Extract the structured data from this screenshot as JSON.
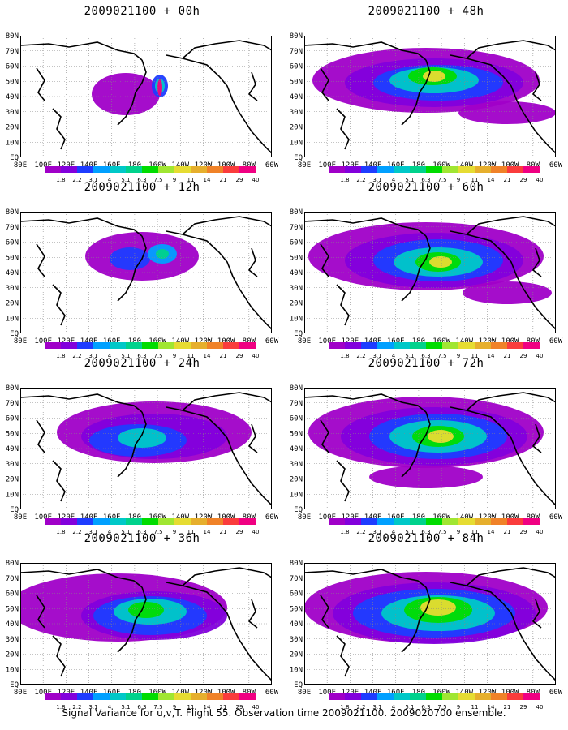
{
  "panels": [
    {
      "title": "2009021100 + 00h",
      "lead": 0
    },
    {
      "title": "2009021100 + 48h",
      "lead": 48
    },
    {
      "title": "2009021100 + 12h",
      "lead": 12
    },
    {
      "title": "2009021100 + 60h",
      "lead": 60
    },
    {
      "title": "2009021100 + 24h",
      "lead": 24
    },
    {
      "title": "2009021100 + 72h",
      "lead": 72
    },
    {
      "title": "2009021100 + 36h",
      "lead": 36
    },
    {
      "title": "2009021100 + 84h",
      "lead": 84
    }
  ],
  "axes": {
    "x_ticks": [
      "80E",
      "100E",
      "120E",
      "140E",
      "160E",
      "180",
      "160W",
      "140W",
      "120W",
      "100W",
      "80W",
      "60W"
    ],
    "y_ticks": [
      "80N",
      "70N",
      "60N",
      "50N",
      "40N",
      "30N",
      "20N",
      "10N",
      "EQ"
    ]
  },
  "colorbar": {
    "levels": [
      "1.8",
      "2.2",
      "3.1",
      "4",
      "5.1",
      "6.3",
      "7.5",
      "9",
      "11",
      "14",
      "21",
      "29",
      "40"
    ],
    "colors": [
      "#a000c8",
      "#8200dc",
      "#1e3cff",
      "#00a0ff",
      "#00c8c8",
      "#00d28c",
      "#00dc00",
      "#a0e632",
      "#e6dc32",
      "#e6af2d",
      "#f08228",
      "#fa3c3c",
      "#f00082"
    ]
  },
  "chart_data": [
    {
      "type": "heatmap",
      "title": "2009021100 + 00h",
      "x_range": [
        "80E",
        "60W"
      ],
      "y_range": [
        "EQ",
        "80N"
      ],
      "variable": "Signal Variance",
      "units_levels": [
        1.8,
        2.2,
        3.1,
        4,
        5.1,
        6.3,
        7.5,
        9,
        11,
        14,
        21,
        29,
        40
      ],
      "peak_region": "160W 50N",
      "peak_level": 40
    },
    {
      "type": "heatmap",
      "title": "2009021100 + 48h",
      "x_range": [
        "80E",
        "60W"
      ],
      "y_range": [
        "EQ",
        "80N"
      ],
      "variable": "Signal Variance",
      "peak_region": "160W 55N",
      "peak_level": 9
    },
    {
      "type": "heatmap",
      "title": "2009021100 + 12h",
      "x_range": [
        "80E",
        "60W"
      ],
      "y_range": [
        "EQ",
        "80N"
      ],
      "variable": "Signal Variance",
      "peak_region": "170W 50N",
      "peak_level": 5.1
    },
    {
      "type": "heatmap",
      "title": "2009021100 + 60h",
      "x_range": [
        "80E",
        "60W"
      ],
      "y_range": [
        "EQ",
        "80N"
      ],
      "variable": "Signal Variance",
      "peak_region": "160W 50N",
      "peak_level": 9
    },
    {
      "type": "heatmap",
      "title": "2009021100 + 24h",
      "x_range": [
        "80E",
        "60W"
      ],
      "y_range": [
        "EQ",
        "80N"
      ],
      "variable": "Signal Variance",
      "peak_region": "170W 50N",
      "peak_level": 4
    },
    {
      "type": "heatmap",
      "title": "2009021100 + 72h",
      "x_range": [
        "80E",
        "60W"
      ],
      "y_range": [
        "EQ",
        "80N"
      ],
      "variable": "Signal Variance",
      "peak_region": "160W 50N",
      "peak_level": 9
    },
    {
      "type": "heatmap",
      "title": "2009021100 + 36h",
      "x_range": [
        "80E",
        "60W"
      ],
      "y_range": [
        "EQ",
        "80N"
      ],
      "variable": "Signal Variance",
      "peak_region": "170W 50N",
      "peak_level": 7.5
    },
    {
      "type": "heatmap",
      "title": "2009021100 + 84h",
      "x_range": [
        "80E",
        "60W"
      ],
      "y_range": [
        "EQ",
        "80N"
      ],
      "variable": "Signal Variance",
      "peak_region": "160W 55N",
      "peak_level": 11
    }
  ],
  "footer": "Signal Variance for u,v,T. Flight 55. Observation time 2009021100. 2009020700 ensemble."
}
